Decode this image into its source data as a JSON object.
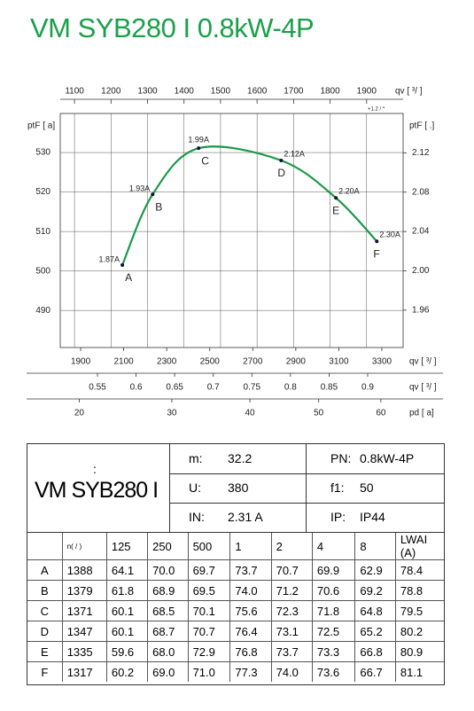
{
  "header": {
    "title": "VM SYB280 I 0.8kW-4P"
  },
  "chart_data": {
    "type": "line",
    "x": [
      1231,
      1314,
      1440,
      1666,
      1816,
      1928
    ],
    "xlabel": "qv [  ³/  ]",
    "xlabel_note": "+1.2  /  *",
    "xlim": [
      1061,
      2000
    ],
    "xticks": [
      1100,
      1200,
      1300,
      1400,
      1500,
      1600,
      1700,
      1800,
      1900
    ],
    "ylabel": "ptF [  a]",
    "ylim": [
      480.6,
      539.9
    ],
    "yticks": [
      490,
      500,
      510,
      520,
      530
    ],
    "y2label": "ptF [    .]",
    "y2lim": [
      1.922,
      2.16
    ],
    "y2ticks": [
      1.96,
      {
        "value": 2,
        "label": "2.00"
      },
      2.04,
      2.08,
      2.12
    ],
    "grid": true,
    "series": [
      {
        "color": "#1a9a48",
        "values": [
          501.5,
          519.4,
          531.1,
          528,
          518.5,
          507.5
        ],
        "point_labels": [
          "A",
          "B",
          "C",
          "D",
          "E",
          "F"
        ],
        "current_labels": [
          "1.87A",
          "1.93A",
          "1.99A",
          "2.12A",
          "2.20A",
          "2.30A"
        ]
      }
    ],
    "bottom_axes": [
      {
        "label": "qv [  ³/  ]",
        "lim": [
          1805,
          3399
        ],
        "ticks": [
          1900,
          2100,
          2300,
          2500,
          2700,
          2900,
          3100,
          3300
        ]
      },
      {
        "label": "qv [  ³/  ]",
        "lim": [
          0.5018,
          0.9459
        ],
        "ticks": [
          0.55,
          0.6,
          0.65,
          0.7,
          0.75,
          0.8,
          0.85,
          0.9
        ]
      },
      {
        "label": "pd [  a]",
        "lim": [
          18.2,
          63.8
        ],
        "ticks": [
          20,
          30,
          40,
          50,
          60
        ],
        "scale": "sqrt"
      }
    ]
  },
  "spec": {
    "colon": ":",
    "model": "VM SYB280 I",
    "rows": [
      [
        "m:",
        "32.2",
        "PN:",
        "0.8kW-4P"
      ],
      [
        "U:",
        "380",
        "f1:",
        "50"
      ],
      [
        "IN:",
        "2.31  A",
        "IP:",
        "IP44"
      ]
    ]
  },
  "noise": {
    "header": [
      "n(  /  )",
      "125",
      "250",
      "500",
      "1",
      "2",
      "4",
      "8",
      "LWAI     (A)"
    ],
    "rows": [
      [
        "A",
        "1388",
        "64.1",
        "70.0",
        "69.7",
        "73.7",
        "70.7",
        "69.9",
        "62.9",
        "78.4"
      ],
      [
        "B",
        "1379",
        "61.8",
        "68.9",
        "69.5",
        "74.0",
        "71.2",
        "70.6",
        "69.2",
        "78.8"
      ],
      [
        "C",
        "1371",
        "60.1",
        "68.5",
        "70.1",
        "75.6",
        "72.3",
        "71.8",
        "64.8",
        "79.5"
      ],
      [
        "D",
        "1347",
        "60.1",
        "68.7",
        "70.7",
        "76.4",
        "73.1",
        "72.5",
        "65.2",
        "80.2"
      ],
      [
        "E",
        "1335",
        "59.6",
        "68.0",
        "72.9",
        "76.8",
        "73.7",
        "73.3",
        "66.8",
        "80.9"
      ],
      [
        "F",
        "1317",
        "60.2",
        "69.0",
        "71.0",
        "77.3",
        "74.0",
        "73.6",
        "66.7",
        "81.1"
      ]
    ]
  }
}
